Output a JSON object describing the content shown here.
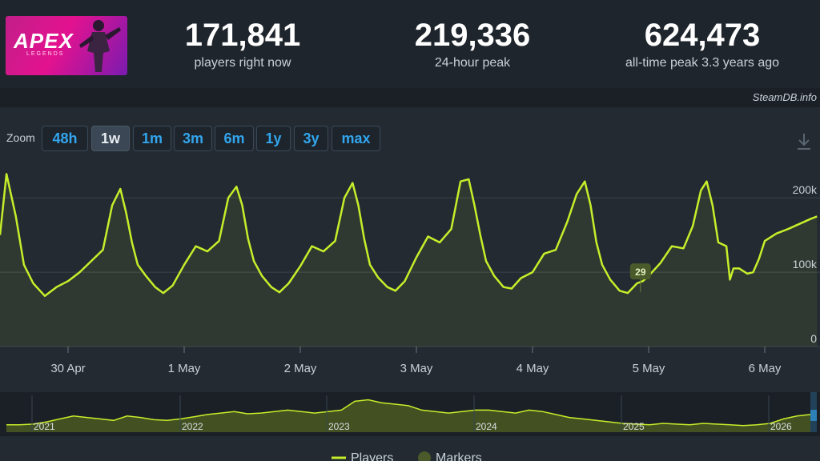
{
  "game": {
    "logo_text": "APEX",
    "logo_subtext": "LEGENDS"
  },
  "stats": [
    {
      "value": "171,841",
      "label": "players right now"
    },
    {
      "value": "219,336",
      "label": "24-hour peak"
    },
    {
      "value": "624,473",
      "label": "all-time peak 3.3 years ago"
    }
  ],
  "credit": "SteamDB.info",
  "zoom": {
    "label": "Zoom",
    "options": [
      "48h",
      "1w",
      "1m",
      "3m",
      "6m",
      "1y",
      "3y",
      "max"
    ],
    "active": "1w"
  },
  "colors": {
    "series": "#c6ee2a",
    "marker": "#4a5a2a",
    "grid": "#39434d",
    "accent": "#32a6ee"
  },
  "chart_data": {
    "type": "line",
    "title": "",
    "xlabel": "",
    "ylabel": "",
    "ylim": [
      0,
      240000
    ],
    "y_ticks": [
      0,
      100000,
      200000
    ],
    "y_tick_labels": [
      "0",
      "100k",
      "200k"
    ],
    "x_tick_labels": [
      "30 Apr",
      "1 May",
      "2 May",
      "3 May",
      "4 May",
      "5 May",
      "6 May"
    ],
    "x_range_days": [
      -0.6,
      6.45
    ],
    "marker": {
      "label": "29",
      "day": 4.93,
      "value": 73000
    },
    "series": [
      {
        "name": "Players",
        "x": [
          -0.6,
          -0.53,
          -0.45,
          -0.38,
          -0.3,
          -0.2,
          -0.1,
          0,
          0.1,
          0.2,
          0.3,
          0.38,
          0.45,
          0.5,
          0.55,
          0.6,
          0.67,
          0.75,
          0.82,
          0.9,
          1.0,
          1.1,
          1.2,
          1.3,
          1.38,
          1.45,
          1.5,
          1.55,
          1.6,
          1.67,
          1.75,
          1.82,
          1.9,
          2.0,
          2.1,
          2.2,
          2.3,
          2.38,
          2.45,
          2.5,
          2.55,
          2.6,
          2.67,
          2.75,
          2.82,
          2.9,
          3.0,
          3.1,
          3.2,
          3.3,
          3.38,
          3.45,
          3.5,
          3.55,
          3.6,
          3.67,
          3.75,
          3.82,
          3.9,
          4.0,
          4.1,
          4.2,
          4.3,
          4.38,
          4.45,
          4.5,
          4.55,
          4.6,
          4.67,
          4.75,
          4.82,
          4.9,
          4.95,
          5.0,
          5.1,
          5.2,
          5.3,
          5.38,
          5.45,
          5.5,
          5.55,
          5.6,
          5.67,
          5.7,
          5.73,
          5.78,
          5.85,
          5.9,
          5.95,
          6.0,
          6.1,
          6.2,
          6.3,
          6.4,
          6.45
        ],
        "values": [
          150000,
          232000,
          175000,
          110000,
          85000,
          68000,
          80000,
          88000,
          100000,
          115000,
          130000,
          190000,
          212000,
          180000,
          140000,
          110000,
          95000,
          80000,
          72000,
          82000,
          110000,
          135000,
          128000,
          142000,
          200000,
          215000,
          190000,
          145000,
          115000,
          95000,
          80000,
          73000,
          85000,
          108000,
          135000,
          128000,
          142000,
          200000,
          220000,
          190000,
          145000,
          110000,
          93000,
          80000,
          75000,
          88000,
          120000,
          148000,
          140000,
          158000,
          222000,
          225000,
          190000,
          150000,
          115000,
          95000,
          80000,
          78000,
          92000,
          100000,
          125000,
          130000,
          168000,
          205000,
          222000,
          190000,
          140000,
          110000,
          90000,
          75000,
          72000,
          85000,
          88000,
          95000,
          112000,
          135000,
          132000,
          162000,
          210000,
          222000,
          190000,
          140000,
          135000,
          90000,
          105000,
          105000,
          98000,
          100000,
          118000,
          142000,
          152000,
          158000,
          165000,
          172000,
          175000
        ]
      }
    ],
    "navigator": {
      "year_labels": [
        "2021",
        "2022",
        "2023",
        "2024",
        "2025",
        "2026"
      ],
      "values": [
        10,
        10,
        11,
        14,
        18,
        22,
        20,
        18,
        16,
        22,
        20,
        17,
        16,
        18,
        21,
        24,
        26,
        28,
        25,
        26,
        28,
        30,
        28,
        26,
        28,
        30,
        42,
        44,
        40,
        38,
        36,
        30,
        28,
        26,
        28,
        30,
        30,
        28,
        26,
        30,
        28,
        24,
        20,
        18,
        16,
        14,
        12,
        11,
        10,
        12,
        11,
        10,
        12,
        11,
        10,
        9,
        10,
        12,
        18,
        22,
        24
      ]
    }
  },
  "legend": {
    "players_label": "Players",
    "markers_label": "Markers"
  }
}
